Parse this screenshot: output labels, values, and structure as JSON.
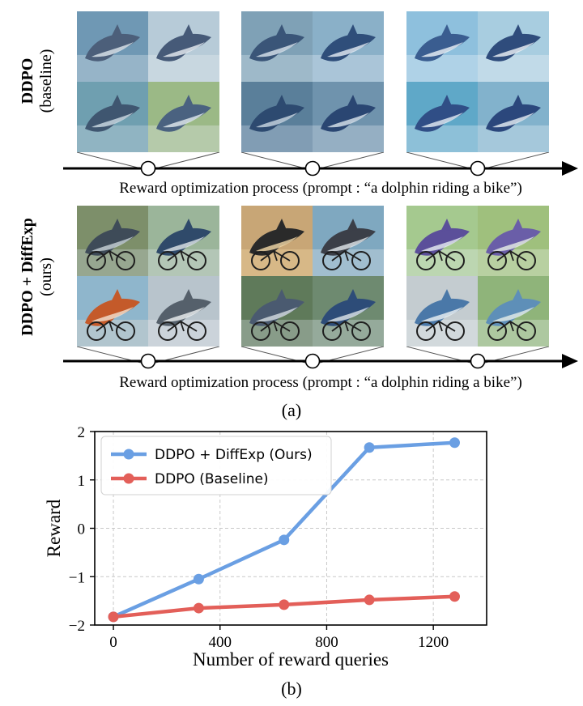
{
  "panel_a": {
    "rows": [
      {
        "label_main": "DDPO",
        "label_sub": "(baseline)",
        "groups": [
          {
            "tiles": [
              {
                "bg": "#6f98b4",
                "body": "#4c5f7a",
                "accent": "#dfe7ee"
              },
              {
                "bg": "#b7cbd8",
                "body": "#465a78",
                "accent": "#e9eef2"
              },
              {
                "bg": "#6f9fb0",
                "body": "#3f5670",
                "accent": "#cfdde6"
              },
              {
                "bg": "#9bb986",
                "body": "#4a6280",
                "accent": "#e4ecef"
              }
            ]
          },
          {
            "tiles": [
              {
                "bg": "#7fa1b6",
                "body": "#3a5578",
                "accent": "#dbe5ee"
              },
              {
                "bg": "#8ab0c8",
                "body": "#2f4e7a",
                "accent": "#e6eef5"
              },
              {
                "bg": "#5a7f9a",
                "body": "#2d4a70",
                "accent": "#cad8e4"
              },
              {
                "bg": "#6f93ad",
                "body": "#2a4672",
                "accent": "#dce6ee"
              }
            ]
          },
          {
            "tiles": [
              {
                "bg": "#8ec0dd",
                "body": "#3a5d90",
                "accent": "#eef4f8"
              },
              {
                "bg": "#a8cde0",
                "body": "#2f4c7c",
                "accent": "#f0f4f7"
              },
              {
                "bg": "#5fa8c8",
                "body": "#304e86",
                "accent": "#e6eff5"
              },
              {
                "bg": "#82b2cc",
                "body": "#2b477c",
                "accent": "#e9f0f5"
              }
            ]
          }
        ]
      },
      {
        "label_main": "DDPO + DiffExp",
        "label_sub": "(ours)",
        "groups": [
          {
            "tiles": [
              {
                "bg": "#7d8f6a",
                "body": "#3e4b58",
                "accent": "#c9d3d8"
              },
              {
                "bg": "#9bb59a",
                "body": "#2f4a6a",
                "accent": "#e0e6ea"
              },
              {
                "bg": "#8fb6cc",
                "body": "#c45a2a",
                "accent": "#f2e2d2"
              },
              {
                "bg": "#b8c4cc",
                "body": "#55606b",
                "accent": "#eef1f3"
              }
            ]
          },
          {
            "tiles": [
              {
                "bg": "#c8a676",
                "body": "#2a2a2a",
                "accent": "#f4d9a8"
              },
              {
                "bg": "#7fa8c0",
                "body": "#3b3f48",
                "accent": "#e2e8ec"
              },
              {
                "bg": "#5f7a5a",
                "body": "#4a5a70",
                "accent": "#d6dde2"
              },
              {
                "bg": "#6e8a70",
                "body": "#2d4c78",
                "accent": "#dfe6ea"
              }
            ]
          },
          {
            "tiles": [
              {
                "bg": "#a5c98f",
                "body": "#5b4f9a",
                "accent": "#e8eef2"
              },
              {
                "bg": "#9fc07d",
                "body": "#6a5ea8",
                "accent": "#e9efe6"
              },
              {
                "bg": "#c4ccd0",
                "body": "#4a78a8",
                "accent": "#eef2f4"
              },
              {
                "bg": "#8fb47a",
                "body": "#5e8fb8",
                "accent": "#e6eee8"
              }
            ]
          }
        ]
      }
    ],
    "process_caption": "Reward optimization process (prompt : “a dolphin riding a bike”)",
    "sublabel": "(a)"
  },
  "panel_b": {
    "sublabel": "(b)"
  },
  "chart_data": {
    "type": "line",
    "xlabel": "Number of reward queries",
    "ylabel": "Reward",
    "xlim": [
      -70,
      1400
    ],
    "ylim": [
      -2,
      2
    ],
    "xticks": [
      0,
      400,
      800,
      1200
    ],
    "xtick_labels": [
      "0",
      "400",
      "800",
      "1200"
    ],
    "yticks": [
      -2,
      -1,
      0,
      1,
      2
    ],
    "ytick_labels": [
      "−2",
      "−1",
      "0",
      "1",
      "2"
    ],
    "grid": true,
    "legend_position": "top-left",
    "series": [
      {
        "name": "DDPO + DiffExp (Ours)",
        "color": "#6a9fe3",
        "x": [
          0,
          320,
          640,
          960,
          1280
        ],
        "y": [
          -1.83,
          -1.05,
          -0.24,
          1.67,
          1.77
        ]
      },
      {
        "name": "DDPO (Baseline)",
        "color": "#e35f59",
        "x": [
          0,
          320,
          640,
          960,
          1280
        ],
        "y": [
          -1.83,
          -1.65,
          -1.58,
          -1.48,
          -1.41
        ]
      }
    ]
  }
}
